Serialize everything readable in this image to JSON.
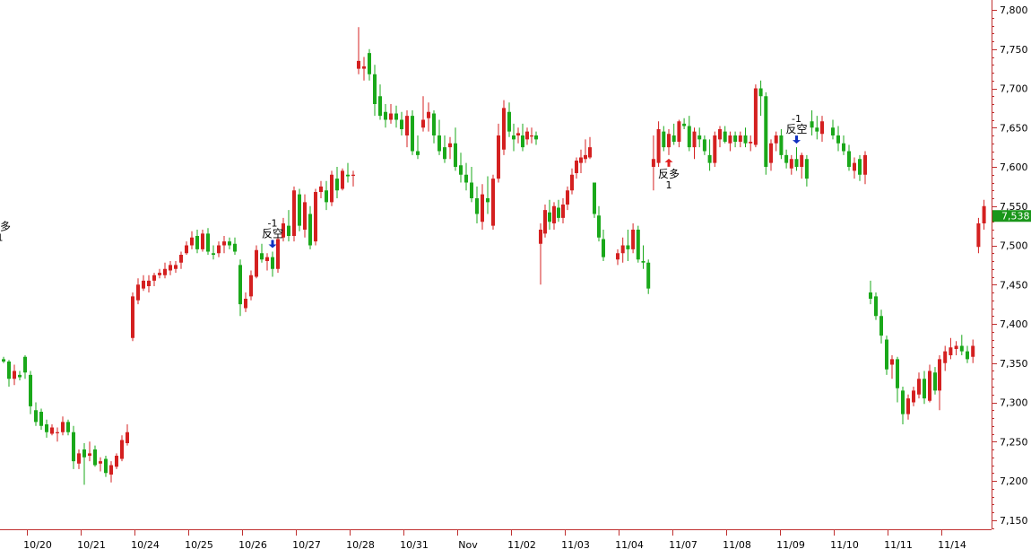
{
  "chart_data": {
    "type": "candlestick",
    "y_axis": {
      "position": "right",
      "range": [
        7130,
        7810
      ],
      "ticks": [
        7150,
        7200,
        7250,
        7300,
        7350,
        7400,
        7450,
        7500,
        7550,
        7600,
        7650,
        7700,
        7750,
        7800
      ],
      "tick_labels": [
        "7,150",
        "7,200",
        "7,250",
        "7,300",
        "7,350",
        "7,400",
        "7,450",
        "7,500",
        "7,550",
        "7,600",
        "7,650",
        "7,700",
        "7,750",
        "7,800"
      ]
    },
    "x_axis": {
      "categories": [
        "10/20",
        "10/21",
        "10/24",
        "10/25",
        "10/26",
        "10/27",
        "10/28",
        "10/31",
        "Nov",
        "11/02",
        "11/03",
        "11/04",
        "11/07",
        "11/08",
        "11/09",
        "11/10",
        "11/11",
        "11/14"
      ]
    },
    "last_price": {
      "value": 7538,
      "label": "7,538"
    },
    "colors": {
      "up": "#d42020",
      "down": "#1aa81a",
      "axis": "#c03030",
      "badge": "#1a961a",
      "signal_long": "#e02020",
      "signal_short": "#1030c0"
    },
    "candles": [
      [
        7355,
        7358,
        7350,
        7352
      ],
      [
        7352,
        7354,
        7320,
        7330
      ],
      [
        7330,
        7348,
        7322,
        7340
      ],
      [
        7335,
        7340,
        7328,
        7332
      ],
      [
        7358,
        7360,
        7330,
        7338
      ],
      [
        7335,
        7340,
        7285,
        7295
      ],
      [
        7290,
        7300,
        7270,
        7275
      ],
      [
        7288,
        7292,
        7265,
        7270
      ],
      [
        7272,
        7278,
        7255,
        7262
      ],
      [
        7260,
        7272,
        7258,
        7268
      ],
      [
        7262,
        7268,
        7250,
        7262
      ],
      [
        7262,
        7282,
        7258,
        7275
      ],
      [
        7275,
        7278,
        7258,
        7262
      ],
      [
        7262,
        7270,
        7215,
        7225
      ],
      [
        7222,
        7240,
        7215,
        7235
      ],
      [
        7240,
        7248,
        7195,
        7230
      ],
      [
        7232,
        7250,
        7225,
        7235
      ],
      [
        7240,
        7245,
        7218,
        7220
      ],
      [
        7222,
        7230,
        7212,
        7225
      ],
      [
        7228,
        7232,
        7205,
        7210
      ],
      [
        7208,
        7225,
        7198,
        7220
      ],
      [
        7218,
        7235,
        7215,
        7232
      ],
      [
        7228,
        7258,
        7225,
        7252
      ],
      [
        7248,
        7272,
        7245,
        7262
      ],
      [
        7382,
        7440,
        7378,
        7435
      ],
      [
        7430,
        7458,
        7425,
        7450
      ],
      [
        7445,
        7462,
        7442,
        7455
      ],
      [
        7448,
        7462,
        7440,
        7455
      ],
      [
        7455,
        7465,
        7448,
        7462
      ],
      [
        7462,
        7470,
        7458,
        7465
      ],
      [
        7462,
        7478,
        7458,
        7470
      ],
      [
        7468,
        7480,
        7462,
        7475
      ],
      [
        7470,
        7480,
        7465,
        7475
      ],
      [
        7478,
        7492,
        7470,
        7488
      ],
      [
        7490,
        7505,
        7488,
        7500
      ],
      [
        7500,
        7518,
        7495,
        7510
      ],
      [
        7512,
        7520,
        7490,
        7495
      ],
      [
        7495,
        7520,
        7492,
        7515
      ],
      [
        7515,
        7522,
        7488,
        7492
      ],
      [
        7490,
        7500,
        7482,
        7488
      ],
      [
        7490,
        7505,
        7485,
        7500
      ],
      [
        7500,
        7512,
        7490,
        7505
      ],
      [
        7505,
        7510,
        7495,
        7500
      ],
      [
        7502,
        7510,
        7488,
        7492
      ],
      [
        7475,
        7482,
        7410,
        7425
      ],
      [
        7420,
        7440,
        7415,
        7432
      ],
      [
        7435,
        7468,
        7430,
        7462
      ],
      [
        7460,
        7500,
        7458,
        7494
      ],
      [
        7490,
        7502,
        7478,
        7482
      ],
      [
        7480,
        7490,
        7468,
        7485
      ],
      [
        7485,
        7492,
        7460,
        7470
      ],
      [
        7470,
        7512,
        7465,
        7508
      ],
      [
        7510,
        7535,
        7505,
        7528
      ],
      [
        7525,
        7545,
        7505,
        7512
      ],
      [
        7512,
        7575,
        7505,
        7570
      ],
      [
        7565,
        7572,
        7518,
        7525
      ],
      [
        7520,
        7565,
        7510,
        7555
      ],
      [
        7540,
        7550,
        7495,
        7500
      ],
      [
        7505,
        7572,
        7500,
        7568
      ],
      [
        7568,
        7582,
        7560,
        7575
      ],
      [
        7570,
        7582,
        7545,
        7555
      ],
      [
        7555,
        7595,
        7550,
        7590
      ],
      [
        7585,
        7600,
        7560,
        7570
      ],
      [
        7572,
        7598,
        7570,
        7595
      ],
      [
        7590,
        7605,
        7580,
        7588
      ],
      [
        7590,
        7595,
        7575,
        7590
      ],
      [
        7725,
        7778,
        7718,
        7735
      ],
      [
        7725,
        7740,
        7710,
        7728
      ],
      [
        7745,
        7750,
        7710,
        7718
      ],
      [
        7718,
        7730,
        7665,
        7680
      ],
      [
        7690,
        7705,
        7660,
        7665
      ],
      [
        7670,
        7680,
        7650,
        7660
      ],
      [
        7660,
        7680,
        7655,
        7668
      ],
      [
        7668,
        7678,
        7650,
        7660
      ],
      [
        7660,
        7670,
        7640,
        7648
      ],
      [
        7640,
        7672,
        7625,
        7665
      ],
      [
        7665,
        7672,
        7615,
        7620
      ],
      [
        7620,
        7640,
        7610,
        7615
      ],
      [
        7650,
        7690,
        7645,
        7660
      ],
      [
        7662,
        7682,
        7645,
        7670
      ],
      [
        7668,
        7672,
        7630,
        7640
      ],
      [
        7640,
        7660,
        7615,
        7620
      ],
      [
        7625,
        7640,
        7605,
        7610
      ],
      [
        7625,
        7638,
        7610,
        7630
      ],
      [
        7630,
        7650,
        7595,
        7600
      ],
      [
        7602,
        7618,
        7580,
        7590
      ],
      [
        7590,
        7605,
        7570,
        7580
      ],
      [
        7580,
        7600,
        7555,
        7560
      ],
      [
        7560,
        7575,
        7528,
        7540
      ],
      [
        7530,
        7578,
        7520,
        7565
      ],
      [
        7560,
        7588,
        7540,
        7555
      ],
      [
        7525,
        7590,
        7520,
        7585
      ],
      [
        7585,
        7655,
        7580,
        7640
      ],
      [
        7622,
        7685,
        7615,
        7675
      ],
      [
        7670,
        7682,
        7638,
        7645
      ],
      [
        7640,
        7655,
        7620,
        7635
      ],
      [
        7640,
        7650,
        7630,
        7643
      ],
      [
        7640,
        7655,
        7620,
        7625
      ],
      [
        7635,
        7650,
        7628,
        7645
      ],
      [
        7640,
        7650,
        7630,
        7640
      ],
      [
        7640,
        7645,
        7628,
        7635
      ],
      [
        7502,
        7528,
        7450,
        7520
      ],
      [
        7515,
        7552,
        7510,
        7545
      ],
      [
        7542,
        7558,
        7520,
        7530
      ],
      [
        7528,
        7555,
        7520,
        7550
      ],
      [
        7548,
        7558,
        7530,
        7535
      ],
      [
        7535,
        7560,
        7528,
        7552
      ],
      [
        7552,
        7575,
        7545,
        7570
      ],
      [
        7570,
        7598,
        7565,
        7590
      ],
      [
        7592,
        7612,
        7585,
        7608
      ],
      [
        7605,
        7622,
        7592,
        7612
      ],
      [
        7610,
        7635,
        7605,
        7615
      ],
      [
        7612,
        7638,
        7610,
        7625
      ],
      [
        7580,
        7580,
        7535,
        7540
      ],
      [
        7538,
        7550,
        7505,
        7510
      ],
      [
        7508,
        7520,
        7480,
        7485
      ],
      [
        7482,
        7495,
        7475,
        7490
      ],
      [
        7490,
        7510,
        7478,
        7500
      ],
      [
        7500,
        7520,
        7480,
        7495
      ],
      [
        7495,
        7528,
        7490,
        7520
      ],
      [
        7520,
        7525,
        7478,
        7482
      ],
      [
        7480,
        7500,
        7470,
        7478
      ],
      [
        7478,
        7482,
        7438,
        7445
      ],
      [
        7600,
        7640,
        7570,
        7610
      ],
      [
        7605,
        7658,
        7600,
        7648
      ],
      [
        7645,
        7652,
        7620,
        7625
      ],
      [
        7625,
        7648,
        7615,
        7642
      ],
      [
        7640,
        7655,
        7628,
        7632
      ],
      [
        7632,
        7660,
        7625,
        7658
      ],
      [
        7655,
        7662,
        7648,
        7652
      ],
      [
        7652,
        7665,
        7620,
        7625
      ],
      [
        7625,
        7650,
        7610,
        7645
      ],
      [
        7640,
        7650,
        7625,
        7635
      ],
      [
        7635,
        7640,
        7615,
        7620
      ],
      [
        7615,
        7635,
        7595,
        7605
      ],
      [
        7605,
        7645,
        7600,
        7640
      ],
      [
        7635,
        7652,
        7625,
        7648
      ],
      [
        7645,
        7652,
        7630,
        7632
      ],
      [
        7630,
        7645,
        7620,
        7640
      ],
      [
        7640,
        7645,
        7625,
        7632
      ],
      [
        7632,
        7645,
        7625,
        7640
      ],
      [
        7640,
        7650,
        7625,
        7630
      ],
      [
        7630,
        7640,
        7620,
        7632
      ],
      [
        7628,
        7705,
        7625,
        7700
      ],
      [
        7700,
        7710,
        7665,
        7690
      ],
      [
        7690,
        7695,
        7590,
        7600
      ],
      [
        7605,
        7635,
        7595,
        7630
      ],
      [
        7630,
        7645,
        7620,
        7640
      ],
      [
        7640,
        7648,
        7610,
        7615
      ],
      [
        7615,
        7622,
        7598,
        7605
      ],
      [
        7598,
        7615,
        7590,
        7610
      ],
      [
        7610,
        7625,
        7595,
        7600
      ],
      [
        7600,
        7618,
        7585,
        7615
      ],
      [
        7610,
        7615,
        7575,
        7585
      ],
      [
        7658,
        7672,
        7640,
        7650
      ],
      [
        7650,
        7665,
        7635,
        7645
      ],
      [
        7642,
        7665,
        7632,
        7658
      ],
      [
        7650,
        7660,
        7635,
        7640
      ],
      [
        7640,
        7652,
        7620,
        7630
      ],
      [
        7630,
        7640,
        7615,
        7620
      ],
      [
        7620,
        7628,
        7595,
        7600
      ],
      [
        7595,
        7612,
        7585,
        7605
      ],
      [
        7610,
        7615,
        7582,
        7590
      ],
      [
        7590,
        7620,
        7578,
        7615
      ],
      [
        7440,
        7455,
        7425,
        7432
      ],
      [
        7435,
        7440,
        7405,
        7410
      ],
      [
        7410,
        7418,
        7375,
        7385
      ],
      [
        7380,
        7385,
        7335,
        7342
      ],
      [
        7348,
        7360,
        7330,
        7355
      ],
      [
        7355,
        7358,
        7300,
        7318
      ],
      [
        7315,
        7320,
        7272,
        7285
      ],
      [
        7285,
        7310,
        7278,
        7305
      ],
      [
        7300,
        7320,
        7295,
        7315
      ],
      [
        7310,
        7338,
        7305,
        7330
      ],
      [
        7330,
        7340,
        7298,
        7305
      ],
      [
        7302,
        7348,
        7300,
        7340
      ],
      [
        7338,
        7345,
        7310,
        7315
      ],
      [
        7315,
        7360,
        7290,
        7355
      ],
      [
        7350,
        7372,
        7340,
        7365
      ],
      [
        7360,
        7382,
        7355,
        7370
      ],
      [
        7368,
        7378,
        7360,
        7372
      ],
      [
        7372,
        7386,
        7360,
        7365
      ],
      [
        7365,
        7372,
        7350,
        7355
      ],
      [
        7358,
        7380,
        7350,
        7372
      ],
      [
        7498,
        7535,
        7490,
        7528
      ],
      [
        7528,
        7558,
        7520,
        7550
      ],
      [
        7548,
        7560,
        7530,
        7540
      ],
      [
        7540,
        7558,
        7535,
        7550
      ],
      [
        7550,
        7562,
        7540,
        7555
      ],
      [
        7555,
        7565,
        7545,
        7560
      ],
      [
        7558,
        7562,
        7548,
        7552
      ],
      [
        7552,
        7560,
        7535,
        7545
      ],
      [
        7545,
        7558,
        7530,
        7538
      ]
    ],
    "signals": [
      {
        "candle": 50,
        "type": "short",
        "label": "反空",
        "value": "-1"
      },
      {
        "candle": 126,
        "type": "long",
        "label": "反多",
        "value": "1"
      },
      {
        "candle": 151,
        "type": "short",
        "label": "反空",
        "value": "-1"
      },
      {
        "candle": 190,
        "type": "long",
        "label": "反多",
        "value": "1"
      }
    ]
  }
}
